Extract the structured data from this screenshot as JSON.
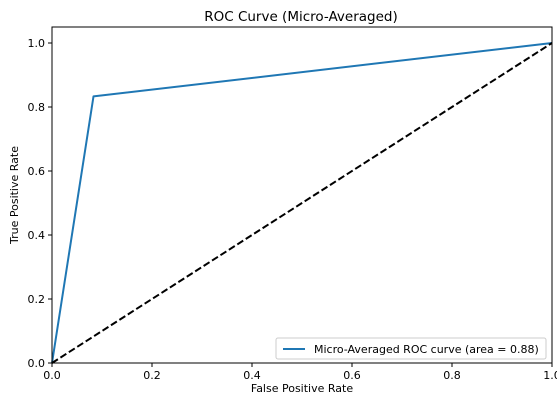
{
  "chart_data": {
    "type": "line",
    "title": "ROC Curve (Micro-Averaged)",
    "xlabel": "False Positive Rate",
    "ylabel": "True Positive Rate",
    "xlim": [
      0.0,
      1.0
    ],
    "ylim": [
      0.0,
      1.05
    ],
    "xticks": [
      0.0,
      0.2,
      0.4,
      0.6,
      0.8,
      1.0
    ],
    "xtick_labels": [
      "0.0",
      "0.2",
      "0.4",
      "0.6",
      "0.8",
      "1.0"
    ],
    "yticks": [
      0.0,
      0.2,
      0.4,
      0.6,
      0.8,
      1.0
    ],
    "ytick_labels": [
      "0.0",
      "0.2",
      "0.4",
      "0.6",
      "0.8",
      "1.0"
    ],
    "grid": false,
    "legend_position": "lower-right",
    "series": [
      {
        "name": "Micro-Averaged ROC curve (area = 0.88)",
        "color": "#1f77b4",
        "style": "solid",
        "x": [
          0.0,
          0.083,
          1.0
        ],
        "y": [
          0.0,
          0.833,
          1.0
        ]
      },
      {
        "color": "#000000",
        "style": "dashed",
        "x": [
          0.0,
          1.0
        ],
        "y": [
          0.0,
          1.0
        ]
      }
    ]
  }
}
